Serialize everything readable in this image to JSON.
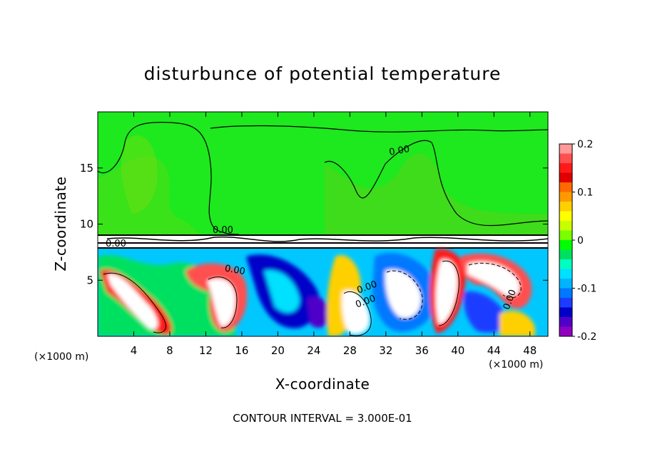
{
  "chart_data": {
    "type": "heatmap",
    "title": "disturbunce of potential temperature",
    "xlabel": "X-coordinate",
    "ylabel": "Z-coordinate",
    "x_unit": "(×1000 m)",
    "z_unit": "(×1000 m)",
    "xlim": [
      0,
      50
    ],
    "ylim": [
      0,
      20
    ],
    "x_ticks": [
      4,
      8,
      12,
      16,
      20,
      24,
      28,
      32,
      36,
      40,
      44,
      48
    ],
    "y_ticks": [
      5,
      10,
      15
    ],
    "colorbar": {
      "range": [
        -0.2,
        0.2
      ],
      "ticks": [
        0.2,
        0.1,
        0,
        -0.1,
        -0.2
      ],
      "tick_labels": [
        "0.2",
        "0.1",
        "0",
        "-0.1",
        "-0.2"
      ],
      "colors": [
        "#ff9a9a",
        "#ff5050",
        "#ff1a1a",
        "#e00000",
        "#ff6a00",
        "#ff9a00",
        "#ffd000",
        "#ffff00",
        "#c8ff00",
        "#78ff00",
        "#00ff00",
        "#00e060",
        "#00ffc0",
        "#00e0ff",
        "#00b4ff",
        "#0078ff",
        "#1e3cff",
        "#0000c8",
        "#5000c8",
        "#9000c0"
      ]
    },
    "contour_labels": [
      "0.00",
      "0.00",
      "0.00",
      "0.00",
      "0.00",
      "0.00",
      "0.00"
    ],
    "footer": "CONTOUR INTERVAL = 3.000E-01"
  }
}
